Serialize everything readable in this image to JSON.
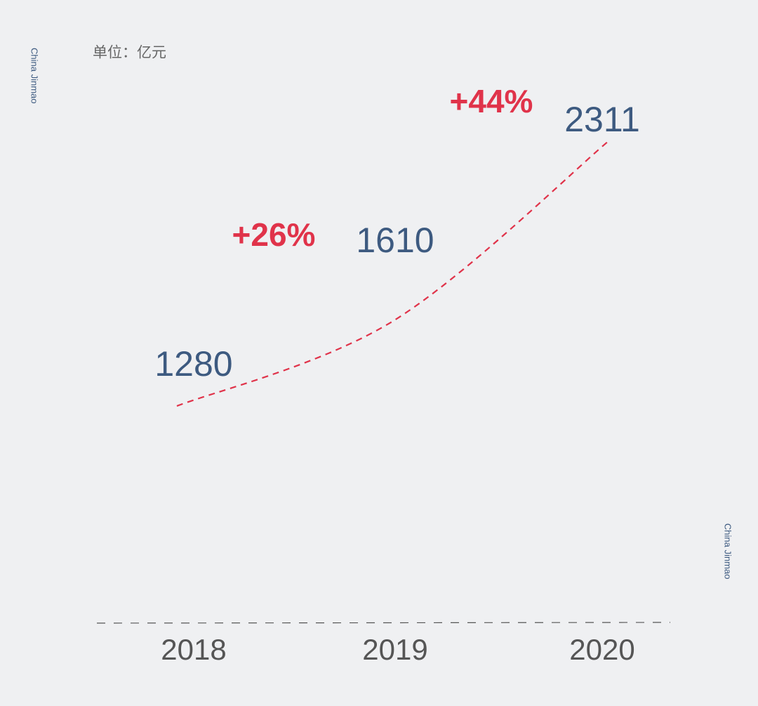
{
  "unit": "单位：亿元",
  "watermarks": [
    "China Jinmao",
    "China Jinmao"
  ],
  "chart_data": {
    "type": "line",
    "categories": [
      "2018",
      "2019",
      "2020"
    ],
    "series": [
      {
        "color": "#e0334a",
        "values": [
          1280,
          1610,
          2311
        ]
      }
    ],
    "annotations": [
      "+26%",
      "+44%"
    ],
    "annotation_color": "#e0334a",
    "value_label_color": "#3d5a80"
  }
}
